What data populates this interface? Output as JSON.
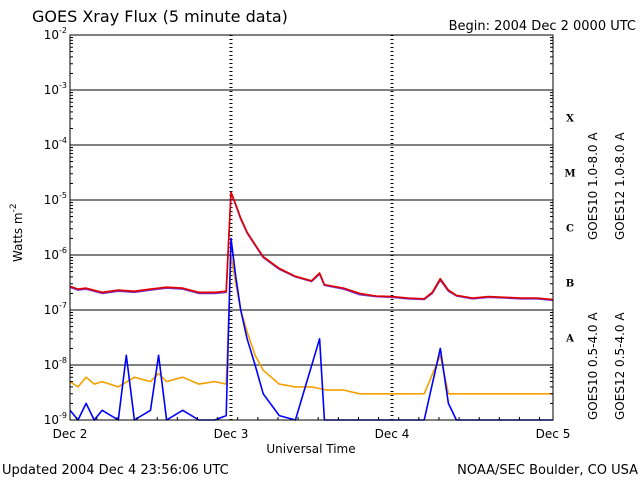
{
  "chart_data": {
    "type": "line",
    "title": "GOES Xray Flux (5 minute data)",
    "begin_label": "Begin:  2004 Dec 2 0000 UTC",
    "xlabel": "Universal Time",
    "ylabel": "Watts m",
    "ylabel_superscript": "-2",
    "y_scale": "log",
    "ylim": [
      1e-09,
      0.01
    ],
    "y_ticks": [
      {
        "base": "10",
        "exp": "-2"
      },
      {
        "base": "10",
        "exp": "-3"
      },
      {
        "base": "10",
        "exp": "-4"
      },
      {
        "base": "10",
        "exp": "-5"
      },
      {
        "base": "10",
        "exp": "-6"
      },
      {
        "base": "10",
        "exp": "-7"
      },
      {
        "base": "10",
        "exp": "-8"
      },
      {
        "base": "10",
        "exp": "-9"
      }
    ],
    "x_range_days": [
      0,
      3
    ],
    "x_ticks": [
      "Dec 2",
      "Dec 3",
      "Dec 4",
      "Dec 5"
    ],
    "flare_classes": [
      "X",
      "M",
      "C",
      "B",
      "A"
    ],
    "grid": true,
    "legend_position": "right",
    "series": [
      {
        "name": "GOES10 1.0-8.0 A",
        "color": "#7b2fbf",
        "points": [
          [
            0,
            2.6e-07
          ],
          [
            0.05,
            2.3e-07
          ],
          [
            0.1,
            2.4e-07
          ],
          [
            0.2,
            2e-07
          ],
          [
            0.3,
            2.2e-07
          ],
          [
            0.4,
            2.1e-07
          ],
          [
            0.5,
            2.3e-07
          ],
          [
            0.6,
            2.5e-07
          ],
          [
            0.7,
            2.4e-07
          ],
          [
            0.8,
            2e-07
          ],
          [
            0.9,
            2e-07
          ],
          [
            0.97,
            2.1e-07
          ],
          [
            1.0,
            1.35e-05
          ],
          [
            1.03,
            8e-06
          ],
          [
            1.06,
            4.5e-06
          ],
          [
            1.1,
            2.5e-06
          ],
          [
            1.15,
            1.5e-06
          ],
          [
            1.2,
            9e-07
          ],
          [
            1.3,
            5.5e-07
          ],
          [
            1.4,
            4e-07
          ],
          [
            1.5,
            3.3e-07
          ],
          [
            1.55,
            4.5e-07
          ],
          [
            1.58,
            2.8e-07
          ],
          [
            1.7,
            2.4e-07
          ],
          [
            1.8,
            1.9e-07
          ],
          [
            1.9,
            1.75e-07
          ],
          [
            2.0,
            1.7e-07
          ],
          [
            2.1,
            1.6e-07
          ],
          [
            2.2,
            1.55e-07
          ],
          [
            2.25,
            2e-07
          ],
          [
            2.3,
            3.5e-07
          ],
          [
            2.35,
            2.2e-07
          ],
          [
            2.4,
            1.8e-07
          ],
          [
            2.5,
            1.6e-07
          ],
          [
            2.6,
            1.7e-07
          ],
          [
            2.7,
            1.65e-07
          ],
          [
            2.8,
            1.6e-07
          ],
          [
            2.9,
            1.6e-07
          ],
          [
            3.0,
            1.5e-07
          ]
        ]
      },
      {
        "name": "GOES12 1.0-8.0 A",
        "color": "#e00000",
        "points": [
          [
            0,
            2.7e-07
          ],
          [
            0.05,
            2.4e-07
          ],
          [
            0.1,
            2.5e-07
          ],
          [
            0.2,
            2.1e-07
          ],
          [
            0.3,
            2.3e-07
          ],
          [
            0.4,
            2.2e-07
          ],
          [
            0.5,
            2.4e-07
          ],
          [
            0.6,
            2.6e-07
          ],
          [
            0.7,
            2.5e-07
          ],
          [
            0.8,
            2.1e-07
          ],
          [
            0.9,
            2.1e-07
          ],
          [
            0.97,
            2.2e-07
          ],
          [
            1.0,
            1.4e-05
          ],
          [
            1.03,
            8.3e-06
          ],
          [
            1.06,
            4.7e-06
          ],
          [
            1.1,
            2.6e-06
          ],
          [
            1.15,
            1.55e-06
          ],
          [
            1.2,
            9.3e-07
          ],
          [
            1.3,
            5.7e-07
          ],
          [
            1.4,
            4.1e-07
          ],
          [
            1.5,
            3.4e-07
          ],
          [
            1.55,
            4.7e-07
          ],
          [
            1.58,
            2.9e-07
          ],
          [
            1.7,
            2.5e-07
          ],
          [
            1.8,
            2e-07
          ],
          [
            1.9,
            1.8e-07
          ],
          [
            2.0,
            1.75e-07
          ],
          [
            2.1,
            1.65e-07
          ],
          [
            2.2,
            1.6e-07
          ],
          [
            2.25,
            2.1e-07
          ],
          [
            2.3,
            3.7e-07
          ],
          [
            2.35,
            2.3e-07
          ],
          [
            2.4,
            1.85e-07
          ],
          [
            2.5,
            1.65e-07
          ],
          [
            2.6,
            1.75e-07
          ],
          [
            2.7,
            1.7e-07
          ],
          [
            2.8,
            1.65e-07
          ],
          [
            2.9,
            1.65e-07
          ],
          [
            3.0,
            1.55e-07
          ]
        ]
      },
      {
        "name": "GOES10 0.5-4.0 A",
        "color": "#f5a000",
        "points": [
          [
            0,
            5e-09
          ],
          [
            0.05,
            4e-09
          ],
          [
            0.1,
            6e-09
          ],
          [
            0.15,
            4.5e-09
          ],
          [
            0.2,
            5e-09
          ],
          [
            0.3,
            4e-09
          ],
          [
            0.4,
            6e-09
          ],
          [
            0.5,
            5e-09
          ],
          [
            0.55,
            7e-09
          ],
          [
            0.6,
            5e-09
          ],
          [
            0.7,
            6e-09
          ],
          [
            0.8,
            4.5e-09
          ],
          [
            0.9,
            5e-09
          ],
          [
            0.97,
            4.5e-09
          ],
          [
            1.0,
            1e-06
          ],
          [
            1.03,
            3e-07
          ],
          [
            1.06,
            1e-07
          ],
          [
            1.1,
            4e-08
          ],
          [
            1.15,
            1.5e-08
          ],
          [
            1.2,
            8e-09
          ],
          [
            1.3,
            4.5e-09
          ],
          [
            1.4,
            4e-09
          ],
          [
            1.5,
            4e-09
          ],
          [
            1.6,
            3.5e-09
          ],
          [
            1.7,
            3.5e-09
          ],
          [
            1.8,
            3e-09
          ],
          [
            1.9,
            3e-09
          ],
          [
            2.0,
            3e-09
          ],
          [
            2.1,
            3e-09
          ],
          [
            2.2,
            3e-09
          ],
          [
            2.3,
            1.5e-08
          ],
          [
            2.35,
            3e-09
          ],
          [
            2.4,
            3e-09
          ],
          [
            2.5,
            3e-09
          ],
          [
            2.6,
            3e-09
          ],
          [
            2.7,
            3e-09
          ],
          [
            2.8,
            3e-09
          ],
          [
            2.9,
            3e-09
          ],
          [
            3.0,
            3e-09
          ]
        ]
      },
      {
        "name": "GOES12 0.5-4.0 A",
        "color": "#0000ff",
        "points": [
          [
            0,
            1.5e-09
          ],
          [
            0.05,
            1e-09
          ],
          [
            0.1,
            2e-09
          ],
          [
            0.15,
            1e-09
          ],
          [
            0.2,
            1.5e-09
          ],
          [
            0.3,
            1e-09
          ],
          [
            0.35,
            1.5e-08
          ],
          [
            0.4,
            1e-09
          ],
          [
            0.5,
            1.5e-09
          ],
          [
            0.55,
            1.5e-08
          ],
          [
            0.6,
            1e-09
          ],
          [
            0.7,
            1.5e-09
          ],
          [
            0.8,
            1e-09
          ],
          [
            0.9,
            1e-09
          ],
          [
            0.97,
            1.2e-09
          ],
          [
            1.0,
            2e-06
          ],
          [
            1.03,
            4e-07
          ],
          [
            1.06,
            1e-07
          ],
          [
            1.1,
            3e-08
          ],
          [
            1.15,
            1e-08
          ],
          [
            1.2,
            3e-09
          ],
          [
            1.3,
            1.2e-09
          ],
          [
            1.4,
            1e-09
          ],
          [
            1.55,
            3e-08
          ],
          [
            1.58,
            1e-09
          ],
          [
            1.7,
            1e-09
          ],
          [
            1.8,
            1e-09
          ],
          [
            2.0,
            1e-09
          ],
          [
            2.2,
            1e-09
          ],
          [
            2.3,
            2e-08
          ],
          [
            2.35,
            2e-09
          ],
          [
            2.4,
            1e-09
          ],
          [
            2.6,
            1e-09
          ],
          [
            2.8,
            1e-09
          ],
          [
            3.0,
            1e-09
          ]
        ]
      }
    ]
  },
  "footer": {
    "updated": "Updated 2004 Dec  4 23:56:06 UTC",
    "source": "NOAA/SEC Boulder, CO USA"
  }
}
